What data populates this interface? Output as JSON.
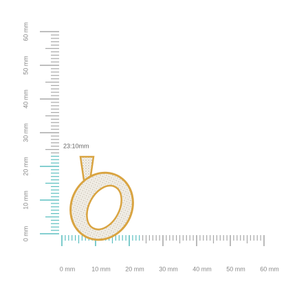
{
  "ruler": {
    "vertical_labels": [
      "0 mm",
      "10 mm",
      "20 mm",
      "30 mm",
      "40 mm",
      "50 mm",
      "60 mm"
    ],
    "horizontal_labels": [
      "0 mm",
      "10 mm",
      "20 mm",
      "30 mm",
      "40 mm",
      "50 mm",
      "60 mm"
    ]
  },
  "measurement": "23:10mm"
}
